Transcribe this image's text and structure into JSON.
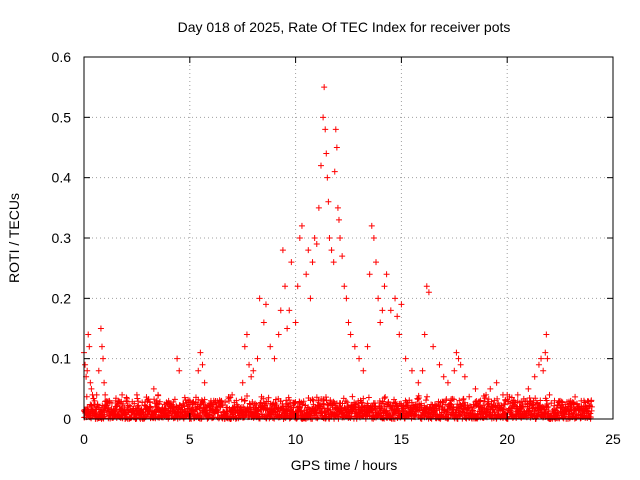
{
  "chart_data": {
    "type": "scatter",
    "title": "Day 018 of 2025, Rate Of TEC Index for receiver pots",
    "xlabel": "GPS time / hours",
    "ylabel": "ROTI / TECUs",
    "xlim": [
      0,
      25
    ],
    "ylim": [
      0,
      0.6
    ],
    "xticks": [
      "0",
      "5",
      "10",
      "15",
      "20",
      "25"
    ],
    "yticks": [
      "0",
      "0.1",
      "0.2",
      "0.3",
      "0.4",
      "0.5",
      "0.6"
    ],
    "grid": true,
    "marker": "+",
    "color": "#ff0000",
    "series": [
      {
        "x": [
          0.0,
          0.05,
          0.1,
          0.15,
          0.2,
          0.25,
          0.3,
          0.35,
          0.4,
          0.5,
          0.6,
          0.7,
          0.8,
          0.85,
          0.9,
          0.95,
          1.0,
          1.2,
          1.5,
          1.8,
          2.0,
          2.5,
          3.0,
          3.3,
          3.5,
          4.0,
          4.4,
          4.5,
          5.0,
          5.4,
          5.5,
          5.6,
          5.7,
          6.0,
          6.5,
          7.0,
          7.5,
          7.6,
          7.7,
          7.8,
          7.9,
          8.0,
          8.2,
          8.3,
          8.5,
          8.6,
          8.8,
          9.0,
          9.2,
          9.3,
          9.4,
          9.5,
          9.6,
          9.7,
          9.8,
          10.0,
          10.1,
          10.2,
          10.3,
          10.5,
          10.6,
          10.7,
          10.8,
          10.9,
          11.0,
          11.1,
          11.2,
          11.3,
          11.35,
          11.4,
          11.45,
          11.5,
          11.55,
          11.6,
          11.7,
          11.8,
          11.85,
          11.9,
          11.95,
          12.0,
          12.05,
          12.1,
          12.2,
          12.3,
          12.4,
          12.5,
          12.6,
          12.8,
          13.0,
          13.2,
          13.4,
          13.5,
          13.6,
          13.7,
          13.8,
          13.9,
          14.0,
          14.1,
          14.2,
          14.3,
          14.5,
          14.7,
          14.8,
          14.9,
          15.0,
          15.2,
          15.5,
          15.8,
          16.0,
          16.1,
          16.2,
          16.3,
          16.5,
          16.8,
          17.0,
          17.2,
          17.5,
          17.6,
          17.7,
          17.8,
          18.0,
          18.5,
          19.0,
          19.2,
          19.5,
          19.8,
          20.0,
          20.5,
          21.0,
          21.3,
          21.5,
          21.6,
          21.7,
          21.8,
          21.85,
          21.9,
          22.0,
          22.5,
          23.0,
          23.5,
          24.0
        ],
        "y": [
          0.11,
          0.09,
          0.07,
          0.08,
          0.14,
          0.12,
          0.06,
          0.05,
          0.04,
          0.03,
          0.04,
          0.08,
          0.15,
          0.12,
          0.1,
          0.06,
          0.04,
          0.03,
          0.03,
          0.04,
          0.03,
          0.04,
          0.03,
          0.05,
          0.04,
          0.03,
          0.1,
          0.08,
          0.03,
          0.08,
          0.11,
          0.09,
          0.06,
          0.03,
          0.03,
          0.04,
          0.06,
          0.12,
          0.14,
          0.09,
          0.07,
          0.08,
          0.1,
          0.2,
          0.16,
          0.19,
          0.12,
          0.1,
          0.14,
          0.18,
          0.28,
          0.22,
          0.15,
          0.18,
          0.26,
          0.16,
          0.22,
          0.3,
          0.32,
          0.24,
          0.28,
          0.2,
          0.26,
          0.3,
          0.29,
          0.35,
          0.42,
          0.5,
          0.55,
          0.48,
          0.44,
          0.4,
          0.36,
          0.3,
          0.28,
          0.26,
          0.41,
          0.48,
          0.45,
          0.35,
          0.33,
          0.3,
          0.27,
          0.22,
          0.2,
          0.16,
          0.14,
          0.12,
          0.1,
          0.08,
          0.12,
          0.24,
          0.32,
          0.3,
          0.26,
          0.2,
          0.16,
          0.18,
          0.22,
          0.24,
          0.18,
          0.2,
          0.17,
          0.14,
          0.19,
          0.1,
          0.08,
          0.06,
          0.08,
          0.14,
          0.22,
          0.21,
          0.12,
          0.09,
          0.07,
          0.06,
          0.08,
          0.11,
          0.1,
          0.09,
          0.07,
          0.05,
          0.04,
          0.05,
          0.06,
          0.04,
          0.04,
          0.04,
          0.05,
          0.07,
          0.09,
          0.1,
          0.08,
          0.11,
          0.14,
          0.1,
          0.04,
          0.03,
          0.03,
          0.03,
          0.02
        ]
      }
    ],
    "baseline_band": {
      "x_start": 0,
      "x_end": 24,
      "y_min": 0.0,
      "y_max": 0.04
    }
  }
}
